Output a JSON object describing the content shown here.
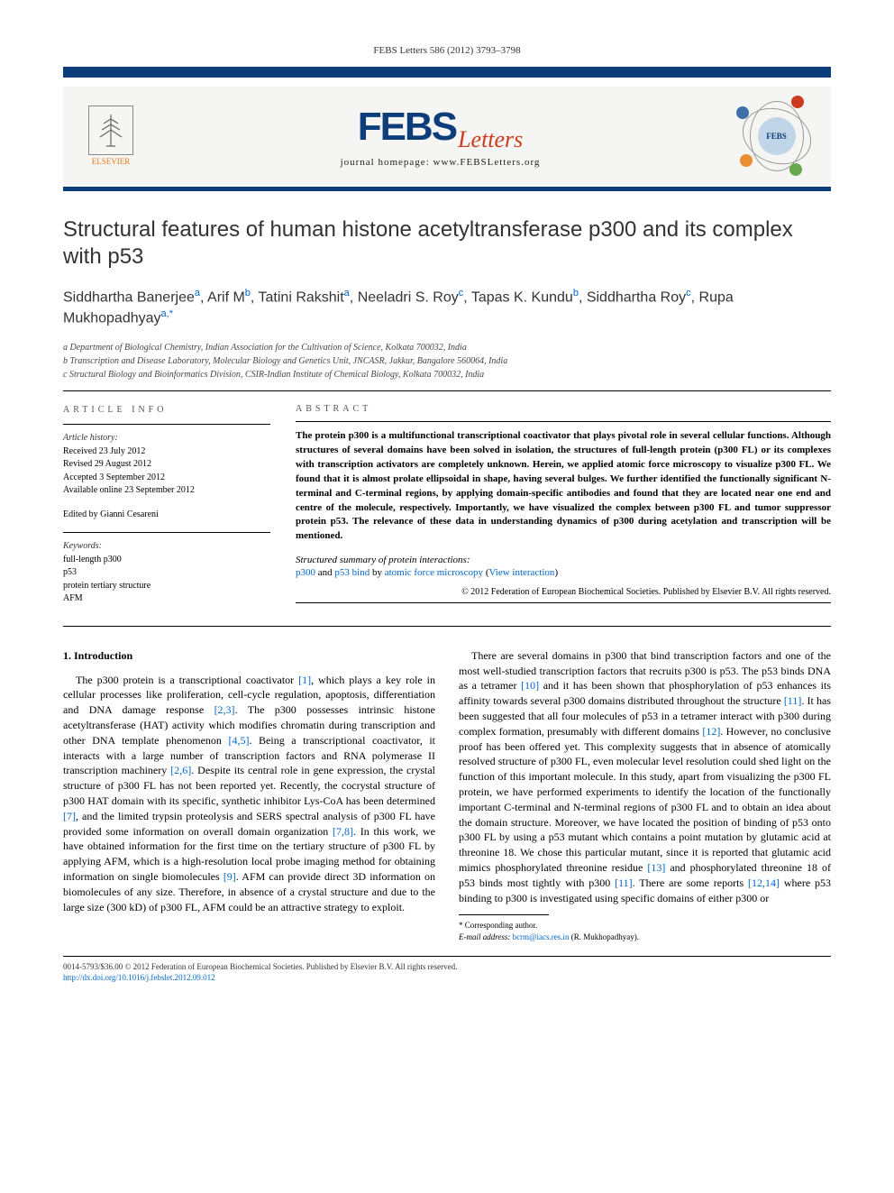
{
  "header": {
    "reference": "FEBS Letters 586 (2012) 3793–3798",
    "publisher_name": "ELSEVIER",
    "journal_name_part1": "FEBS",
    "journal_name_part2": "Letters",
    "homepage_label": "journal homepage: www.FEBSLetters.org",
    "badge_text": "FEBS"
  },
  "colors": {
    "bar": "#0d3e7a",
    "febs_blue": "#0d3e7a",
    "letters_red": "#cc3b1f",
    "elsevier_orange": "#e67817",
    "link": "#0066cc",
    "dot_red": "#cc3b1f",
    "dot_orange": "#e89030",
    "dot_green": "#6aa84f",
    "dot_blue": "#3d6fa8"
  },
  "article": {
    "title": "Structural features of human histone acetyltransferase p300 and its complex with p53",
    "authors_html": "Siddhartha Banerjee<sup>a</sup>, Arif M<sup>b</sup>, Tatini Rakshit<sup>a</sup>, Neeladri S. Roy<sup>c</sup>, Tapas K. Kundu<sup>b</sup>, Siddhartha Roy<sup>c</sup>, Rupa Mukhopadhyay<sup>a,*</sup>",
    "affiliations": [
      "a Department of Biological Chemistry, Indian Association for the Cultivation of Science, Kolkata 700032, India",
      "b Transcription and Disease Laboratory, Molecular Biology and Genetics Unit, JNCASR, Jakkur, Bangalore 560064, India",
      "c Structural Biology and Bioinformatics Division, CSIR-Indian Institute of Chemical Biology, Kolkata 700032, India"
    ]
  },
  "meta": {
    "info_heading": "ARTICLE INFO",
    "history_label": "Article history:",
    "history": [
      "Received 23 July 2012",
      "Revised 29 August 2012",
      "Accepted 3 September 2012",
      "Available online 23 September 2012"
    ],
    "edited_by": "Edited by Gianni Cesareni",
    "keywords_label": "Keywords:",
    "keywords": [
      "full-length p300",
      "p53",
      "protein tertiary structure",
      "AFM"
    ]
  },
  "abstract": {
    "heading": "ABSTRACT",
    "text": "The protein p300 is a multifunctional transcriptional coactivator that plays pivotal role in several cellular functions. Although structures of several domains have been solved in isolation, the structures of full-length protein (p300 FL) or its complexes with transcription activators are completely unknown. Herein, we applied atomic force microscopy to visualize p300 FL. We found that it is almost prolate ellipsoidal in shape, having several bulges. We further identified the functionally significant N-terminal and C-terminal regions, by applying domain-specific antibodies and found that they are located near one end and centre of the molecule, respectively. Importantly, we have visualized the complex between p300 FL and tumor suppressor protein p53. The relevance of these data in understanding dynamics of p300 during acetylation and transcription will be mentioned.",
    "summary_label": "Structured summary of protein interactions:",
    "summary_line_html": "<a href=\"#\">p300</a> and <a href=\"#\">p53</a> <a href=\"#\">bind</a> by <a href=\"#\">atomic force microscopy</a> (<a href=\"#\">View interaction</a>)",
    "copyright": "© 2012 Federation of European Biochemical Societies. Published by Elsevier B.V. All rights reserved."
  },
  "body": {
    "section_heading": "1. Introduction",
    "para1_html": "The p300 protein is a transcriptional coactivator <a href=\"#\">[1]</a>, which plays a key role in cellular processes like proliferation, cell-cycle regulation, apoptosis, differentiation and DNA damage response <a href=\"#\">[2,3]</a>. The p300 possesses intrinsic histone acetyltransferase (HAT) activity which modifies chromatin during transcription and other DNA template phenomenon <a href=\"#\">[4,5]</a>. Being a transcriptional coactivator, it interacts with a large number of transcription factors and RNA polymerase II transcription machinery <a href=\"#\">[2,6]</a>. Despite its central role in gene expression, the crystal structure of p300 FL has not been reported yet. Recently, the cocrystal structure of p300 HAT domain with its specific, synthetic inhibitor Lys-CoA has been determined <a href=\"#\">[7]</a>, and the limited trypsin proteolysis and SERS spectral analysis of p300 FL have provided some information on overall domain organization <a href=\"#\">[7,8]</a>. In this work, we have obtained information for the first time on the tertiary structure of p300 FL by applying AFM, which is a high-resolution local probe imaging method for obtaining information on single biomolecules <a href=\"#\">[9]</a>. AFM can provide direct 3D information on biomolecules of any size. Therefore, in absence of a crystal structure and due to the large size (300 kD) of p300 FL, AFM could be an attractive strategy to exploit.",
    "para2_html": "There are several domains in p300 that bind transcription factors and one of the most well-studied transcription factors that recruits p300 is p53. The p53 binds DNA as a tetramer <a href=\"#\">[10]</a> and it has been shown that phosphorylation of p53 enhances its affinity towards several p300 domains distributed throughout the structure <a href=\"#\">[11]</a>. It has been suggested that all four molecules of p53 in a tetramer interact with p300 during complex formation, presumably with different domains <a href=\"#\">[12]</a>. However, no conclusive proof has been offered yet. This complexity suggests that in absence of atomically resolved structure of p300 FL, even molecular level resolution could shed light on the function of this important molecule. In this study, apart from visualizing the p300 FL protein, we have performed experiments to identify the location of the functionally important C-terminal and N-terminal regions of p300 FL and to obtain an idea about the domain structure. Moreover, we have located the position of binding of p53 onto p300 FL by using a p53 mutant which contains a point mutation by glutamic acid at threonine 18. We chose this particular mutant, since it is reported that glutamic acid mimics phosphorylated threonine residue <a href=\"#\">[13]</a> and phosphorylated threonine 18 of p53 binds most tightly with p300 <a href=\"#\">[11]</a>. There are some reports <a href=\"#\">[12,14]</a> where p53 binding to p300 is investigated using specific domains of either p300 or"
  },
  "footnote": {
    "corresponding": "* Corresponding author.",
    "email_label": "E-mail address:",
    "email": "bcrm@iacs.res.in",
    "email_name": "(R. Mukhopadhyay)."
  },
  "footer": {
    "line1": "0014-5793/$36.00 © 2012 Federation of European Biochemical Societies. Published by Elsevier B.V. All rights reserved.",
    "doi": "http://dx.doi.org/10.1016/j.febslet.2012.09.012"
  }
}
